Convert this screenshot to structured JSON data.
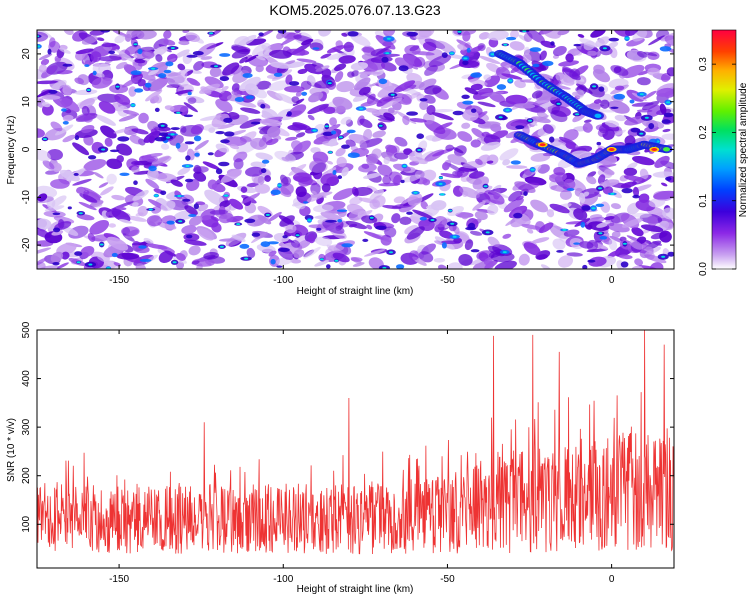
{
  "title": "KOM5.2025.076.07.13.G23",
  "chart_data": [
    {
      "type": "heatmap",
      "xlabel": "Height of straight line (km)",
      "ylabel": "Frequency (Hz)",
      "xlim": [
        -175,
        19
      ],
      "ylim": [
        -25,
        25
      ],
      "xticks": [
        -150,
        -100,
        -50,
        0
      ],
      "yticks": [
        -20,
        -10,
        0,
        10,
        20
      ],
      "colorbar": {
        "label": "Normalized spectral amplitude",
        "range": [
          0,
          0.35
        ],
        "ticks": [
          0.0,
          0.1,
          0.2,
          0.3
        ],
        "tick_labels": [
          "0.0",
          "0.1",
          "0.2",
          "0.3"
        ]
      },
      "features": [
        {
          "x": [
            -28,
            -22,
            -15,
            -10,
            -5,
            0,
            5,
            10,
            17
          ],
          "y": [
            3,
            1,
            -1,
            -3,
            -2,
            0,
            0,
            1,
            0
          ]
        },
        {
          "x": [
            -34,
            -28,
            -21,
            -14,
            -8,
            -4
          ],
          "y": [
            20,
            18,
            14,
            11,
            8,
            7
          ]
        }
      ]
    },
    {
      "type": "line",
      "xlabel": "Height of straight line (km)",
      "ylabel": "SNR (10 * v/v)",
      "xlim": [
        -175,
        19
      ],
      "ylim": [
        10,
        500
      ],
      "xticks": [
        -150,
        -100,
        -50,
        0
      ],
      "yticks": [
        100,
        200,
        300,
        400,
        500
      ],
      "line_color": "#ee3333",
      "trend": {
        "x": [
          -175,
          -150,
          -125,
          -100,
          -75,
          -50,
          -35,
          -25,
          -10,
          0,
          10,
          19
        ],
        "mean": [
          115,
          108,
          110,
          112,
          112,
          120,
          145,
          150,
          160,
          165,
          170,
          175
        ],
        "spread": [
          75,
          70,
          70,
          72,
          75,
          80,
          105,
          110,
          115,
          120,
          125,
          130
        ]
      },
      "peaks": [
        {
          "x": 10,
          "y": 500
        },
        {
          "x": -36,
          "y": 488
        },
        {
          "x": -24,
          "y": 490
        },
        {
          "x": 16,
          "y": 470
        },
        {
          "x": -16,
          "y": 455
        },
        {
          "x": -80,
          "y": 360
        },
        {
          "x": -124,
          "y": 310
        }
      ]
    }
  ]
}
